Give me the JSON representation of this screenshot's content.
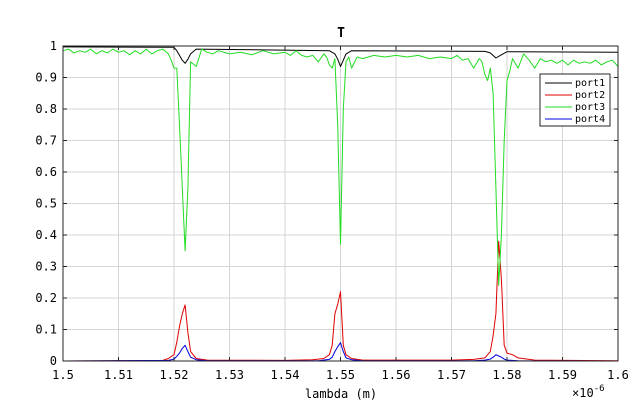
{
  "chart_data": {
    "type": "line",
    "title": "T",
    "xlabel": "lambda (m)",
    "ylabel": "",
    "x_exponent_label": "×10",
    "x_exponent_power": "-6",
    "xlim": [
      1.5,
      1.6
    ],
    "ylim": [
      0,
      1
    ],
    "xticks": [
      "1.5",
      "1.51",
      "1.52",
      "1.53",
      "1.54",
      "1.55",
      "1.56",
      "1.57",
      "1.58",
      "1.59",
      "1.6"
    ],
    "yticks": [
      "0",
      "0.1",
      "0.2",
      "0.3",
      "0.4",
      "0.5",
      "0.6",
      "0.7",
      "0.8",
      "0.9",
      "1"
    ],
    "grid": true,
    "legend_position": "top-right",
    "series": [
      {
        "name": "port1",
        "color": "#000000",
        "x": [
          1.5,
          1.52,
          1.5205,
          1.521,
          1.5215,
          1.522,
          1.5225,
          1.523,
          1.524,
          1.548,
          1.549,
          1.5495,
          1.55,
          1.5505,
          1.551,
          1.552,
          1.576,
          1.577,
          1.578,
          1.579,
          1.58,
          1.581,
          1.6
        ],
        "y": [
          0.997,
          0.996,
          0.985,
          0.97,
          0.955,
          0.945,
          0.958,
          0.975,
          0.99,
          0.985,
          0.975,
          0.958,
          0.935,
          0.955,
          0.975,
          0.985,
          0.983,
          0.978,
          0.962,
          0.972,
          0.982,
          0.982,
          0.98
        ]
      },
      {
        "name": "port2",
        "color": "#e00000",
        "x": [
          1.5,
          1.518,
          1.519,
          1.52,
          1.5205,
          1.521,
          1.5215,
          1.522,
          1.5225,
          1.523,
          1.524,
          1.526,
          1.54,
          1.545,
          1.547,
          1.548,
          1.5485,
          1.549,
          1.5495,
          1.55,
          1.5505,
          1.551,
          1.552,
          1.554,
          1.57,
          1.574,
          1.576,
          1.577,
          1.5775,
          1.578,
          1.5785,
          1.579,
          1.5795,
          1.58,
          1.581,
          1.582,
          1.585,
          1.6
        ],
        "y": [
          0.0,
          0.002,
          0.008,
          0.02,
          0.06,
          0.11,
          0.15,
          0.178,
          0.09,
          0.03,
          0.008,
          0.003,
          0.002,
          0.004,
          0.008,
          0.02,
          0.05,
          0.15,
          0.18,
          0.22,
          0.05,
          0.02,
          0.008,
          0.003,
          0.003,
          0.005,
          0.01,
          0.03,
          0.08,
          0.15,
          0.38,
          0.26,
          0.05,
          0.025,
          0.02,
          0.01,
          0.003,
          0.001
        ]
      },
      {
        "name": "port3",
        "color": "#22dd22",
        "x": [
          1.5,
          1.501,
          1.502,
          1.503,
          1.504,
          1.505,
          1.506,
          1.507,
          1.508,
          1.509,
          1.51,
          1.511,
          1.512,
          1.513,
          1.514,
          1.515,
          1.516,
          1.517,
          1.518,
          1.519,
          1.5195,
          1.52,
          1.5205,
          1.521,
          1.5215,
          1.522,
          1.5225,
          1.523,
          1.524,
          1.525,
          1.526,
          1.527,
          1.528,
          1.53,
          1.532,
          1.534,
          1.536,
          1.538,
          1.54,
          1.541,
          1.542,
          1.543,
          1.544,
          1.545,
          1.546,
          1.547,
          1.5475,
          1.548,
          1.5485,
          1.549,
          1.5495,
          1.55,
          1.5505,
          1.551,
          1.5515,
          1.552,
          1.553,
          1.554,
          1.556,
          1.558,
          1.56,
          1.562,
          1.564,
          1.566,
          1.568,
          1.57,
          1.571,
          1.572,
          1.573,
          1.574,
          1.575,
          1.5755,
          1.576,
          1.5765,
          1.577,
          1.5775,
          1.578,
          1.5785,
          1.579,
          1.5795,
          1.58,
          1.5805,
          1.581,
          1.582,
          1.583,
          1.584,
          1.585,
          1.586,
          1.587,
          1.588,
          1.589,
          1.59,
          1.591,
          1.592,
          1.593,
          1.594,
          1.595,
          1.596,
          1.597,
          1.598,
          1.599,
          1.6
        ],
        "y": [
          0.985,
          0.99,
          0.978,
          0.985,
          0.98,
          0.99,
          0.975,
          0.985,
          0.978,
          0.99,
          0.98,
          0.985,
          0.972,
          0.985,
          0.975,
          0.99,
          0.975,
          0.985,
          0.99,
          0.975,
          0.955,
          0.93,
          0.93,
          0.75,
          0.55,
          0.35,
          0.55,
          0.95,
          0.935,
          0.99,
          0.98,
          0.975,
          0.985,
          0.975,
          0.98,
          0.972,
          0.985,
          0.975,
          0.98,
          0.97,
          0.985,
          0.97,
          0.965,
          0.97,
          0.95,
          0.975,
          0.965,
          0.94,
          0.93,
          0.96,
          0.75,
          0.37,
          0.8,
          0.95,
          0.965,
          0.93,
          0.965,
          0.96,
          0.97,
          0.965,
          0.97,
          0.965,
          0.97,
          0.96,
          0.965,
          0.96,
          0.97,
          0.955,
          0.96,
          0.93,
          0.96,
          0.95,
          0.91,
          0.89,
          0.93,
          0.85,
          0.55,
          0.24,
          0.4,
          0.7,
          0.89,
          0.92,
          0.96,
          0.93,
          0.975,
          0.955,
          0.93,
          0.96,
          0.95,
          0.955,
          0.945,
          0.955,
          0.94,
          0.955,
          0.945,
          0.95,
          0.945,
          0.955,
          0.94,
          0.95,
          0.955,
          0.935
        ]
      },
      {
        "name": "port4",
        "color": "#0000dd",
        "x": [
          1.5,
          1.519,
          1.52,
          1.5205,
          1.521,
          1.5215,
          1.522,
          1.5225,
          1.523,
          1.524,
          1.526,
          1.546,
          1.548,
          1.5485,
          1.549,
          1.5495,
          1.55,
          1.5505,
          1.551,
          1.552,
          1.554,
          1.574,
          1.576,
          1.577,
          1.5775,
          1.578,
          1.5785,
          1.579,
          1.5795,
          1.58,
          1.582,
          1.6
        ],
        "y": [
          0.0,
          0.002,
          0.006,
          0.015,
          0.025,
          0.04,
          0.05,
          0.03,
          0.012,
          0.004,
          0.001,
          0.001,
          0.005,
          0.012,
          0.03,
          0.045,
          0.058,
          0.03,
          0.01,
          0.004,
          0.001,
          0.001,
          0.003,
          0.006,
          0.012,
          0.02,
          0.016,
          0.012,
          0.006,
          0.003,
          0.001,
          0.0
        ]
      }
    ]
  }
}
